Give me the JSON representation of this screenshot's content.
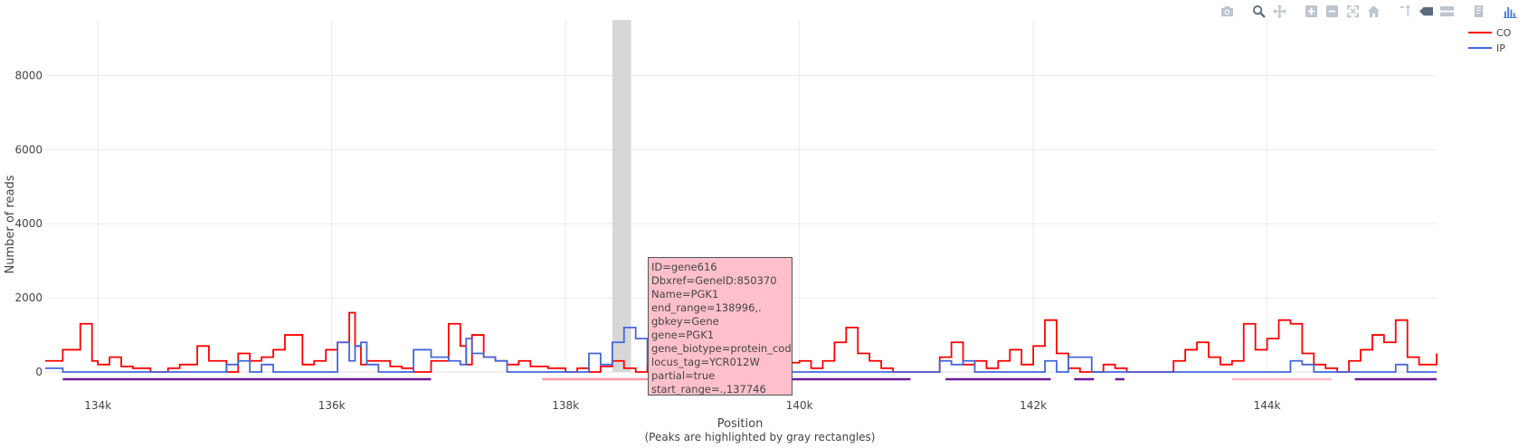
{
  "chart_data": {
    "type": "line",
    "xlabel": "Position",
    "xlabel_note": "(Peaks are highlighted by gray rectangles)",
    "ylabel": "Number of reads",
    "xlim": [
      133550,
      145450
    ],
    "ylim": [
      0,
      9500
    ],
    "x_ticks": [
      134000,
      136000,
      138000,
      140000,
      142000,
      144000
    ],
    "x_tick_labels": [
      "134k",
      "136k",
      "138k",
      "140k",
      "142k",
      "144k"
    ],
    "y_ticks": [
      0,
      2000,
      4000,
      6000,
      8000
    ],
    "y_tick_labels": [
      "0",
      "2000",
      "4000",
      "6000",
      "8000"
    ],
    "grid": true,
    "legend_position": "top-right",
    "series": [
      {
        "name": "CO",
        "color": "#ff0000",
        "x": [
          133550,
          133700,
          133850,
          133950,
          134000,
          134100,
          134200,
          134300,
          134450,
          134600,
          134700,
          134850,
          134950,
          135100,
          135200,
          135300,
          135400,
          135500,
          135600,
          135750,
          135850,
          135950,
          136050,
          136150,
          136200,
          136250,
          136300,
          136400,
          136500,
          136600,
          136700,
          136850,
          137000,
          137100,
          137150,
          137200,
          137300,
          137400,
          137500,
          137600,
          137700,
          137850,
          138000,
          138100,
          138200,
          138300,
          138400,
          138500,
          138600,
          138700,
          138800,
          138900,
          139000,
          139100,
          139200,
          139300,
          139400,
          139500,
          139600,
          139700,
          139800,
          139900,
          140000,
          140100,
          140200,
          140300,
          140400,
          140500,
          140600,
          140700,
          140800,
          140900,
          141000,
          141100,
          141200,
          141300,
          141400,
          141500,
          141600,
          141700,
          141800,
          141900,
          142000,
          142100,
          142200,
          142300,
          142400,
          142500,
          142600,
          142700,
          142800,
          142900,
          143000,
          143100,
          143200,
          143300,
          143400,
          143500,
          143600,
          143700,
          143800,
          143900,
          144000,
          144100,
          144200,
          144300,
          144400,
          144500,
          144600,
          144700,
          144800,
          144900,
          145000,
          145100,
          145200,
          145300,
          145450
        ],
        "y": [
          300,
          600,
          1300,
          300,
          200,
          400,
          150,
          100,
          0,
          100,
          200,
          700,
          300,
          0,
          500,
          300,
          400,
          600,
          1000,
          200,
          300,
          600,
          800,
          1600,
          700,
          200,
          300,
          300,
          150,
          100,
          0,
          300,
          1300,
          700,
          200,
          1000,
          400,
          300,
          200,
          300,
          150,
          100,
          0,
          100,
          0,
          150,
          300,
          100,
          0,
          200,
          400,
          300,
          200,
          150,
          0,
          100,
          0,
          0,
          100,
          0,
          300,
          250,
          300,
          100,
          300,
          800,
          1200,
          500,
          300,
          100,
          0,
          0,
          0,
          0,
          400,
          800,
          200,
          300,
          100,
          300,
          600,
          200,
          700,
          1400,
          500,
          100,
          0,
          0,
          200,
          100,
          0,
          0,
          0,
          0,
          300,
          600,
          800,
          400,
          200,
          300,
          1300,
          600,
          900,
          1400,
          1300,
          500,
          200,
          100,
          0,
          300,
          600,
          1000,
          800,
          1400,
          400,
          200,
          500
        ]
      },
      {
        "name": "IP",
        "color": "#4466dd",
        "x": [
          133550,
          133700,
          133850,
          133950,
          134000,
          134100,
          134200,
          134300,
          134450,
          134600,
          134700,
          134850,
          134950,
          135100,
          135200,
          135300,
          135400,
          135500,
          135600,
          135750,
          135850,
          135950,
          136050,
          136150,
          136200,
          136250,
          136300,
          136400,
          136500,
          136600,
          136700,
          136850,
          137000,
          137100,
          137150,
          137200,
          137300,
          137400,
          137500,
          137600,
          137700,
          137850,
          138000,
          138100,
          138200,
          138300,
          138400,
          138500,
          138600,
          138700,
          138800,
          138900,
          139000,
          139100,
          139200,
          139300,
          139400,
          139500,
          139600,
          139700,
          139800,
          139900,
          140000,
          140100,
          140200,
          140300,
          140400,
          140500,
          140600,
          140700,
          140800,
          140900,
          141000,
          141100,
          141200,
          141300,
          141400,
          141500,
          141600,
          141700,
          141800,
          141900,
          142000,
          142100,
          142200,
          142300,
          142400,
          142500,
          142600,
          142700,
          142800,
          142900,
          143000,
          143100,
          143200,
          143300,
          143400,
          143500,
          143600,
          143700,
          143800,
          143900,
          144000,
          144100,
          144200,
          144300,
          144400,
          144500,
          144600,
          144700,
          144800,
          144900,
          145000,
          145100,
          145200,
          145300,
          145450
        ],
        "y": [
          100,
          0,
          0,
          0,
          0,
          0,
          0,
          0,
          0,
          0,
          0,
          0,
          0,
          200,
          300,
          0,
          200,
          0,
          0,
          0,
          0,
          0,
          800,
          300,
          700,
          800,
          200,
          0,
          0,
          0,
          600,
          400,
          300,
          200,
          900,
          500,
          400,
          300,
          0,
          0,
          0,
          0,
          0,
          0,
          500,
          200,
          800,
          1200,
          900,
          200,
          0,
          0,
          0,
          0,
          0,
          0,
          0,
          0,
          0,
          0,
          0,
          0,
          0,
          0,
          0,
          0,
          0,
          0,
          0,
          0,
          0,
          0,
          0,
          0,
          300,
          200,
          300,
          0,
          0,
          0,
          0,
          0,
          0,
          300,
          0,
          400,
          400,
          0,
          0,
          0,
          0,
          0,
          0,
          0,
          0,
          0,
          0,
          0,
          0,
          0,
          0,
          0,
          0,
          0,
          300,
          200,
          0,
          0,
          0,
          0,
          0,
          0,
          0,
          200,
          0,
          0,
          0
        ]
      }
    ],
    "peaks": [
      [
        138400,
        138560
      ]
    ],
    "gene_bars": [
      {
        "start": 133700,
        "end": 136850,
        "color": "#6a1b9a"
      },
      {
        "start": 137800,
        "end": 138600,
        "color": "#ff9aa8"
      },
      {
        "start": 138600,
        "end": 139000,
        "color": "#ff9aa8"
      },
      {
        "start": 139000,
        "end": 140950,
        "color": "#6a1b9a"
      },
      {
        "start": 141250,
        "end": 142150,
        "color": "#6a1b9a"
      },
      {
        "start": 142350,
        "end": 142520,
        "color": "#6a1b9a"
      },
      {
        "start": 142700,
        "end": 142780,
        "color": "#6a1b9a"
      },
      {
        "start": 143700,
        "end": 144550,
        "color": "#ffb6c1"
      },
      {
        "start": 144750,
        "end": 145450,
        "color": "#6a1b9a"
      }
    ]
  },
  "legend": {
    "items": [
      {
        "label": "CO",
        "color": "#ff0000"
      },
      {
        "label": "IP",
        "color": "#4466dd"
      }
    ]
  },
  "hover": {
    "lines": [
      "ID=gene616",
      "Dbxref=GeneID:850370",
      "Name=PGK1",
      "end_range=138996,.",
      "gbkey=Gene",
      "gene=PGK1",
      "gene_biotype=protein_coding",
      "locus_tag=YCR012W",
      "partial=true",
      "start_range=.,137746"
    ],
    "background": "#ffc0cb"
  },
  "modebar": {
    "icons": [
      "camera-icon",
      "zoom-icon",
      "pan-icon",
      "zoom-in-icon",
      "zoom-out-icon",
      "autoscale-icon",
      "home-icon",
      "spike-lines-icon",
      "hover-closest-icon",
      "hover-compare-icon",
      "edit-icon",
      "plotly-logo-icon"
    ]
  }
}
